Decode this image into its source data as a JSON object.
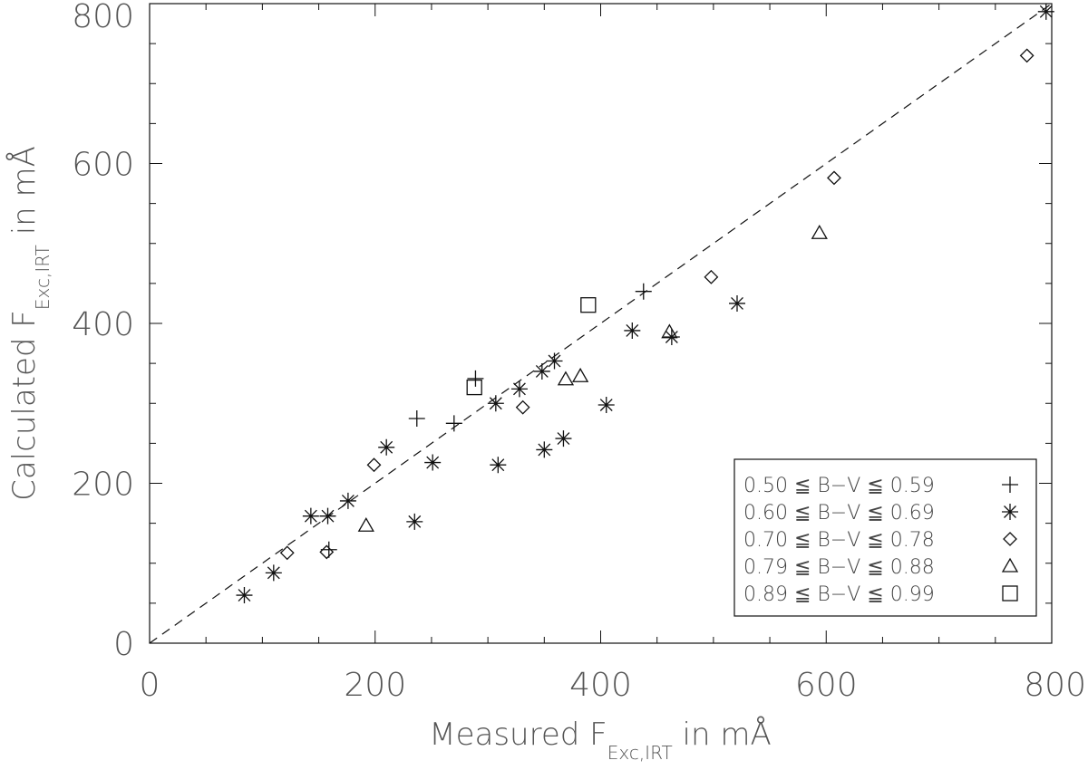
{
  "chart_data": {
    "type": "scatter",
    "title": "",
    "xlabel": "Measured F",
    "xlabel_sub": "Exc,IRT",
    "xlabel_suffix": " in mÅ",
    "ylabel": "Calculated F",
    "ylabel_sub": "Exc,IRT",
    "ylabel_suffix": " in mÅ",
    "xlim": [
      0,
      800
    ],
    "ylim": [
      0,
      800
    ],
    "x_ticks": [
      0,
      200,
      400,
      600,
      800
    ],
    "y_ticks": [
      0,
      200,
      400,
      600,
      800
    ],
    "grid": false,
    "legend_position": "lower-right",
    "reference_line": {
      "style": "dashed",
      "x": [
        0,
        800
      ],
      "y": [
        0,
        800
      ]
    },
    "series": [
      {
        "name": "0.50 ≦ B−V ≦ 0.59",
        "marker": "plus",
        "points": [
          [
            159,
            117
          ],
          [
            237,
            281
          ],
          [
            270,
            275
          ],
          [
            289,
            331
          ],
          [
            438,
            440
          ]
        ]
      },
      {
        "name": "0.60 ≦ B−V ≦ 0.69",
        "marker": "asterisk",
        "points": [
          [
            84,
            60
          ],
          [
            110,
            88
          ],
          [
            143,
            159
          ],
          [
            158,
            159
          ],
          [
            176,
            178
          ],
          [
            210,
            245
          ],
          [
            235,
            152
          ],
          [
            251,
            226
          ],
          [
            307,
            300
          ],
          [
            309,
            223
          ],
          [
            328,
            318
          ],
          [
            348,
            340
          ],
          [
            350,
            242
          ],
          [
            359,
            353
          ],
          [
            367,
            256
          ],
          [
            405,
            298
          ],
          [
            428,
            391
          ],
          [
            463,
            383
          ],
          [
            521,
            425
          ],
          [
            795,
            790
          ]
        ]
      },
      {
        "name": "0.70 ≦ B−V ≦ 0.78",
        "marker": "diamond",
        "points": [
          [
            122,
            113
          ],
          [
            157,
            114
          ],
          [
            199,
            223
          ],
          [
            331,
            295
          ],
          [
            498,
            458
          ],
          [
            607,
            582
          ],
          [
            778,
            735
          ]
        ]
      },
      {
        "name": "0.79 ≦ B−V ≦ 0.88",
        "marker": "triangle",
        "points": [
          [
            192,
            147
          ],
          [
            369,
            330
          ],
          [
            382,
            334
          ],
          [
            461,
            389
          ],
          [
            594,
            513
          ]
        ]
      },
      {
        "name": "0.89 ≦ B−V ≦ 0.99",
        "marker": "square",
        "points": [
          [
            288,
            320
          ],
          [
            389,
            423
          ]
        ]
      }
    ]
  }
}
